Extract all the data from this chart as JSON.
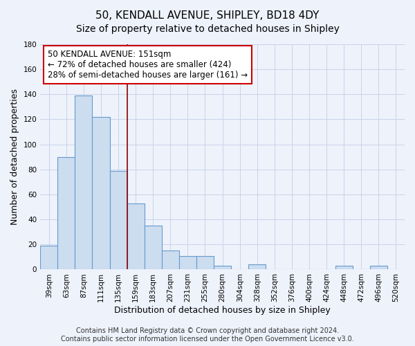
{
  "title": "50, KENDALL AVENUE, SHIPLEY, BD18 4DY",
  "subtitle": "Size of property relative to detached houses in Shipley",
  "xlabel": "Distribution of detached houses by size in Shipley",
  "ylabel": "Number of detached properties",
  "bar_labels": [
    "39sqm",
    "63sqm",
    "87sqm",
    "111sqm",
    "135sqm",
    "159sqm",
    "183sqm",
    "207sqm",
    "231sqm",
    "255sqm",
    "280sqm",
    "304sqm",
    "328sqm",
    "352sqm",
    "376sqm",
    "400sqm",
    "424sqm",
    "448sqm",
    "472sqm",
    "496sqm",
    "520sqm"
  ],
  "bar_values": [
    19,
    90,
    139,
    122,
    79,
    53,
    35,
    15,
    11,
    11,
    3,
    0,
    4,
    0,
    0,
    0,
    0,
    3,
    0,
    3,
    0
  ],
  "bar_color": "#ccddf0",
  "bar_edge_color": "#6699cc",
  "ylim": [
    0,
    180
  ],
  "yticks": [
    0,
    20,
    40,
    60,
    80,
    100,
    120,
    140,
    160,
    180
  ],
  "property_line_color": "#880000",
  "annotation_title": "50 KENDALL AVENUE: 151sqm",
  "annotation_line1": "← 72% of detached houses are smaller (424)",
  "annotation_line2": "28% of semi-detached houses are larger (161) →",
  "footer_line1": "Contains HM Land Registry data © Crown copyright and database right 2024.",
  "footer_line2": "Contains public sector information licensed under the Open Government Licence v3.0.",
  "background_color": "#eef2fb",
  "plot_background_color": "#eef2fb",
  "title_fontsize": 11,
  "subtitle_fontsize": 10,
  "axis_label_fontsize": 9,
  "tick_fontsize": 7.5,
  "footer_fontsize": 7,
  "annotation_fontsize": 8.5
}
